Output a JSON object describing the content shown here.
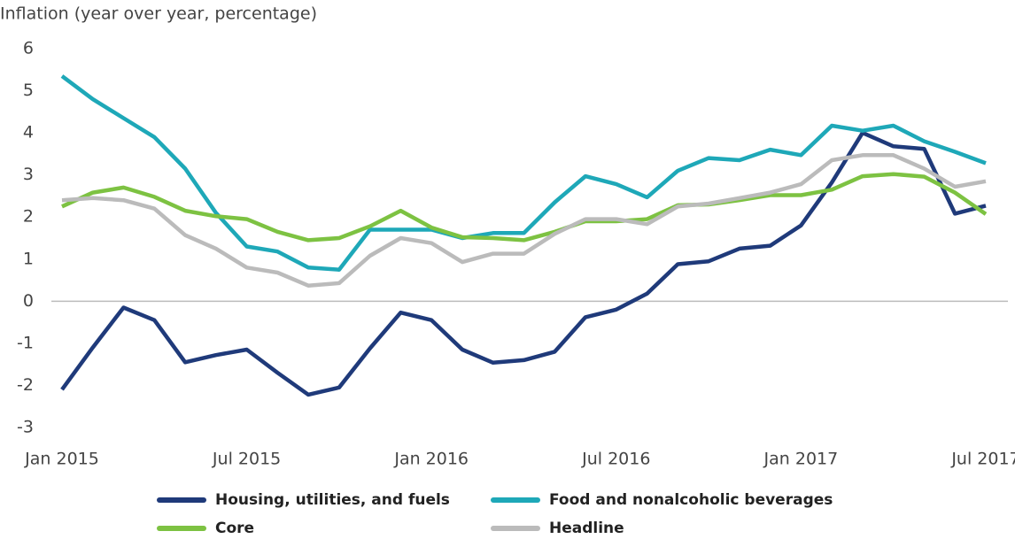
{
  "chart_data": {
    "type": "line",
    "title": "Inflation (year over year, percentage)",
    "categories": [
      "Jan 2015",
      null,
      null,
      null,
      null,
      null,
      "Jul 2015",
      null,
      null,
      null,
      null,
      null,
      "Jan 2016",
      null,
      null,
      null,
      null,
      null,
      "Jul 2016",
      null,
      null,
      null,
      null,
      null,
      "Jan 2017",
      null,
      null,
      null,
      null,
      null,
      "Jul 2017"
    ],
    "ylim": [
      -3,
      6
    ],
    "yticks": [
      -3,
      -2,
      -1,
      0,
      1,
      2,
      3,
      4,
      5,
      6
    ],
    "grid": false,
    "zero_line": true,
    "legend": "bottom",
    "series": [
      {
        "name": "Housing, utilities, and fuels",
        "color": "#1f3a7a",
        "values": [
          -2.1,
          -1.1,
          -0.15,
          -0.45,
          -1.45,
          -1.28,
          -1.15,
          -1.7,
          -2.22,
          -2.05,
          -1.12,
          -0.27,
          -0.45,
          -1.15,
          -1.46,
          -1.4,
          -1.2,
          -0.38,
          -0.2,
          0.18,
          0.88,
          0.95,
          1.25,
          1.32,
          1.8,
          2.82,
          4.0,
          3.68,
          3.62,
          2.08,
          2.27
        ]
      },
      {
        "name": "Food and nonalcoholic beverages",
        "color": "#1ea8b8",
        "values": [
          5.35,
          4.8,
          4.35,
          3.9,
          3.15,
          2.1,
          1.3,
          1.18,
          0.8,
          0.75,
          1.7,
          1.7,
          1.7,
          1.5,
          1.62,
          1.62,
          2.35,
          2.97,
          2.78,
          2.47,
          3.1,
          3.4,
          3.35,
          3.6,
          3.47,
          4.17,
          4.05,
          4.17,
          3.8,
          3.55,
          3.28
        ]
      },
      {
        "name": "Core",
        "color": "#7dc242",
        "values": [
          2.25,
          2.58,
          2.7,
          2.48,
          2.15,
          2.02,
          1.95,
          1.65,
          1.45,
          1.5,
          1.78,
          2.15,
          1.75,
          1.52,
          1.5,
          1.45,
          1.65,
          1.9,
          1.9,
          1.95,
          2.28,
          2.3,
          2.4,
          2.52,
          2.52,
          2.65,
          2.97,
          3.02,
          2.96,
          2.58,
          2.07
        ]
      },
      {
        "name": "Headline",
        "color": "#bbbbbb",
        "values": [
          2.4,
          2.45,
          2.4,
          2.2,
          1.57,
          1.25,
          0.8,
          0.68,
          0.37,
          0.43,
          1.08,
          1.5,
          1.38,
          0.93,
          1.13,
          1.13,
          1.6,
          1.95,
          1.95,
          1.83,
          2.25,
          2.32,
          2.45,
          2.58,
          2.78,
          3.35,
          3.47,
          3.47,
          3.15,
          2.72,
          2.85
        ]
      }
    ]
  }
}
